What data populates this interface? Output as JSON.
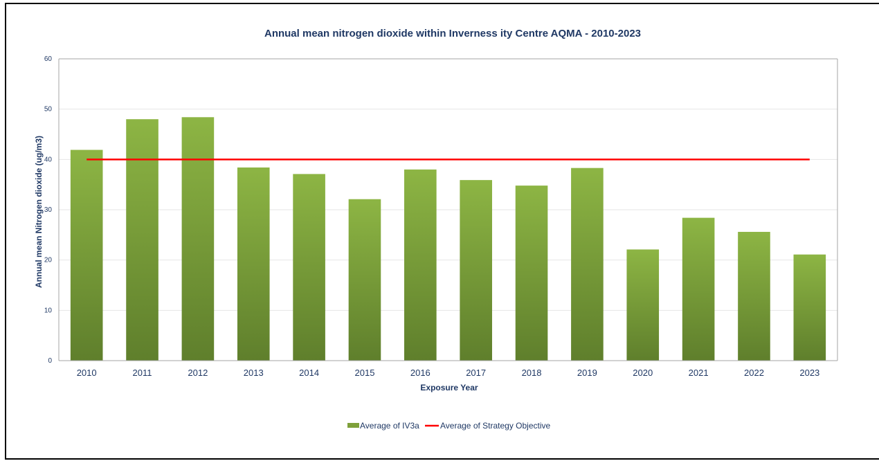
{
  "chart_data": {
    "type": "bar",
    "title": "Annual mean nitrogen dioxide within Inverness ity Centre AQMA - 2010-2023",
    "xlabel": "Exposure Year",
    "ylabel": "Annual mean Nitrogen dioxide (ug/m3)",
    "ylim": [
      0,
      60
    ],
    "yticks": [
      0,
      10,
      20,
      30,
      40,
      50,
      60
    ],
    "grid": true,
    "legend_position": "bottom",
    "categories": [
      "2010",
      "2011",
      "2012",
      "2013",
      "2014",
      "2015",
      "2016",
      "2017",
      "2018",
      "2019",
      "2020",
      "2021",
      "2022",
      "2023"
    ],
    "series": [
      {
        "name": "Average of IV3a",
        "kind": "bar",
        "color": "#7ea03a",
        "values": [
          41.9,
          48.0,
          48.4,
          38.4,
          37.1,
          32.1,
          38.0,
          35.9,
          34.8,
          38.3,
          22.1,
          28.4,
          25.6,
          21.1
        ]
      },
      {
        "name": "Average of Strategy Objective",
        "kind": "line",
        "color": "#ff0000",
        "values": [
          40,
          40,
          40,
          40,
          40,
          40,
          40,
          40,
          40,
          40,
          40,
          40,
          40,
          40
        ]
      }
    ]
  }
}
